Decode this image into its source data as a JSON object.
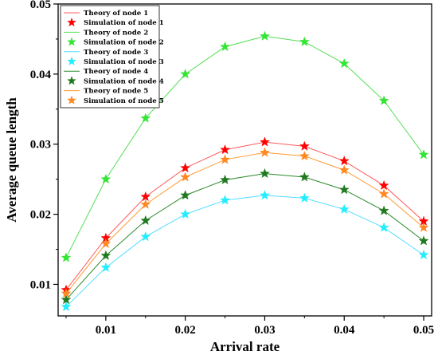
{
  "chart_data": {
    "type": "line",
    "title": "",
    "xlabel": "Arrival rate",
    "ylabel": "Average queue length",
    "xlim": [
      0.004,
      0.051
    ],
    "ylim": [
      0.0055,
      0.05
    ],
    "x_ticks": [
      0.01,
      0.02,
      0.03,
      0.04,
      0.05
    ],
    "x_tick_labels": [
      "0.01",
      "0.02",
      "0.03",
      "0.04",
      "0.05"
    ],
    "y_ticks": [
      0.01,
      0.02,
      0.03,
      0.04,
      0.05
    ],
    "y_tick_labels": [
      "0.01",
      "0.02",
      "0.03",
      "0.04",
      "0.05"
    ],
    "grid": false,
    "legend_position": "top-left",
    "x": [
      0.005,
      0.01,
      0.015,
      0.02,
      0.025,
      0.03,
      0.035,
      0.04,
      0.045,
      0.05
    ],
    "series": [
      {
        "theory_label": "Theory of node 1",
        "simulation_label": "Simulation of node 1",
        "line_color": "#ff5a5a",
        "marker_color": "#ff0000",
        "values": [
          0.0092,
          0.0166,
          0.0225,
          0.0266,
          0.0292,
          0.0303,
          0.0297,
          0.0276,
          0.0241,
          0.019
        ]
      },
      {
        "theory_label": "Theory of node 2",
        "simulation_label": "Simulation of node 2",
        "line_color": "#55dd55",
        "marker_color": "#33e633",
        "values": [
          0.0138,
          0.025,
          0.0337,
          0.04,
          0.0439,
          0.0454,
          0.0446,
          0.0415,
          0.0362,
          0.0285
        ]
      },
      {
        "theory_label": "Theory of node 3",
        "simulation_label": "Simulation of node 3",
        "line_color": "#55ddff",
        "marker_color": "#22eeff",
        "values": [
          0.0068,
          0.0124,
          0.0168,
          0.02,
          0.022,
          0.0227,
          0.0223,
          0.0207,
          0.0181,
          0.0142
        ]
      },
      {
        "theory_label": "Theory of node 4",
        "simulation_label": "Simulation of node 4",
        "line_color": "#2a8a2a",
        "marker_color": "#1f7a1f",
        "values": [
          0.0078,
          0.0141,
          0.0191,
          0.0227,
          0.0249,
          0.0258,
          0.0253,
          0.0235,
          0.0205,
          0.0162
        ]
      },
      {
        "theory_label": "Theory of node 5",
        "simulation_label": "Simulation of node 5",
        "line_color": "#ff9a33",
        "marker_color": "#ff8822",
        "values": [
          0.0087,
          0.0158,
          0.0214,
          0.0253,
          0.0278,
          0.0288,
          0.0283,
          0.0263,
          0.0229,
          0.0181
        ]
      }
    ]
  }
}
